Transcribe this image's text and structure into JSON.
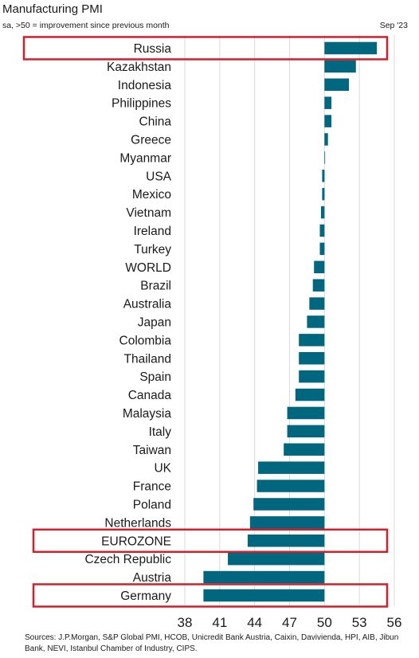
{
  "header": {
    "title": "Manufacturing PMI",
    "subtitle": "sa, >50 = improvement since previous month",
    "date": "Sep '23"
  },
  "footer": {
    "source": "Sources: J.P.Morgan, S&P Global PMI, HCOB, Unicredit Bank Austria, Caixin, Davivienda, HPI, AIB, Jibun Bank, NEVI, Istanbul Chamber of Industry, CIPS."
  },
  "chart_data": {
    "type": "bar",
    "orientation": "horizontal",
    "title": "Manufacturing PMI",
    "subtitle": "sa, >50 = improvement since previous month",
    "baseline": 50,
    "xlim": [
      38,
      56
    ],
    "xticks": [
      38,
      41,
      44,
      47,
      50,
      53,
      56
    ],
    "bar_color": "#00677f",
    "highlight_color": "#d0202e",
    "highlighted": [
      "Russia",
      "EUROZONE",
      "Germany"
    ],
    "categories": [
      "Russia",
      "Kazakhstan",
      "Indonesia",
      "Philippines",
      "China",
      "Greece",
      "Myanmar",
      "USA",
      "Mexico",
      "Vietnam",
      "Ireland",
      "Turkey",
      "WORLD",
      "Brazil",
      "Australia",
      "Japan",
      "Colombia",
      "Thailand",
      "Spain",
      "Canada",
      "Malaysia",
      "Italy",
      "Taiwan",
      "UK",
      "France",
      "Poland",
      "Netherlands",
      "EUROZONE",
      "Czech Republic",
      "Austria",
      "Germany"
    ],
    "values": [
      54.5,
      52.7,
      52.1,
      50.6,
      50.6,
      50.3,
      50.0,
      49.8,
      49.8,
      49.7,
      49.6,
      49.6,
      49.1,
      49.0,
      48.7,
      48.5,
      47.8,
      47.8,
      47.8,
      47.5,
      46.8,
      46.8,
      46.5,
      44.3,
      44.2,
      43.9,
      43.6,
      43.4,
      41.7,
      39.6,
      39.6
    ],
    "xlabel": "",
    "ylabel": "",
    "grid": true
  }
}
